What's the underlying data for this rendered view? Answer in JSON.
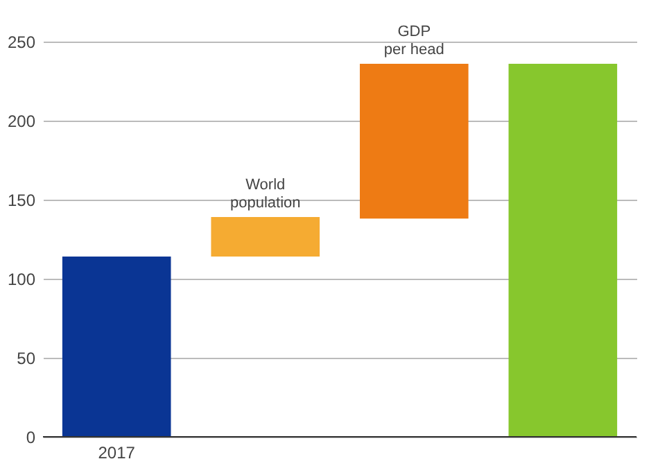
{
  "chart_data": {
    "type": "bar",
    "categories": [
      "2017",
      null,
      null,
      null
    ],
    "values": [
      114,
      25,
      98,
      236
    ],
    "base": [
      0,
      114,
      138,
      0
    ],
    "colors": [
      "#0a3594",
      "#f5ab32",
      "#ee7b14",
      "#87c72d"
    ],
    "ylim": [
      0,
      250
    ],
    "yticks": [
      0,
      50,
      100,
      150,
      200,
      250
    ],
    "grid": "y",
    "annotations": [
      {
        "text": "World\npopulation",
        "y": 139
      },
      {
        "text": "GDP\nper head",
        "y": 236
      }
    ]
  }
}
